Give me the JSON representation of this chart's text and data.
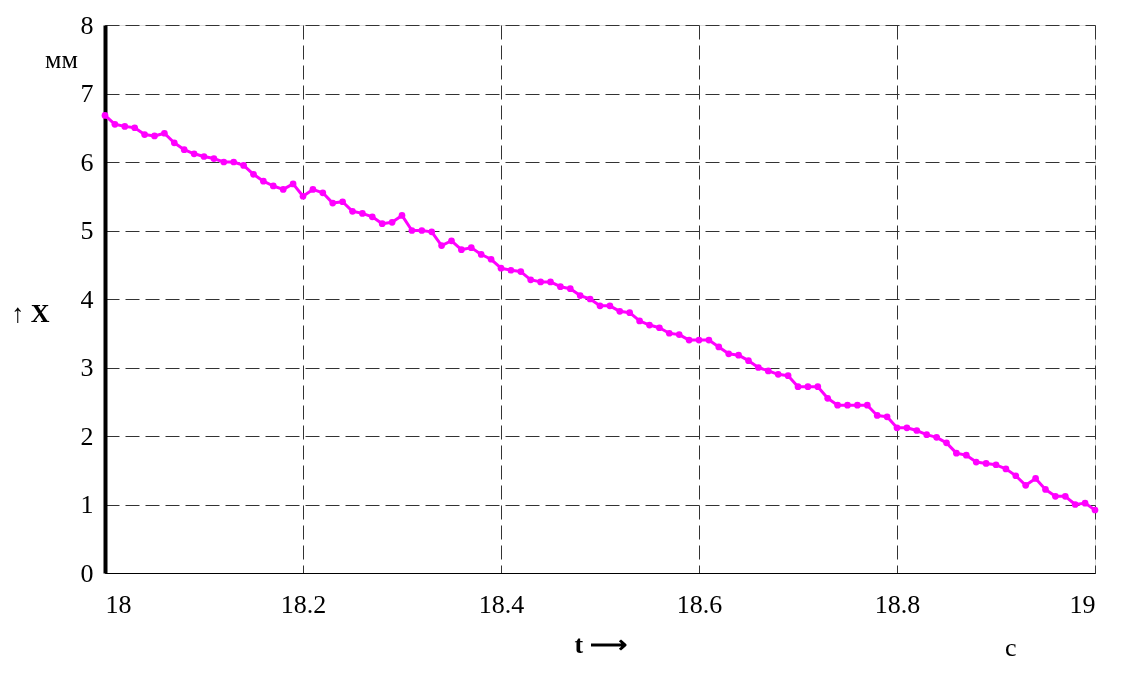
{
  "chart_data": {
    "type": "line",
    "xlabel": "t ⟶",
    "ylabel": "↑ X",
    "annotations": [
      "мм",
      "c"
    ],
    "x": [
      18.0,
      18.01,
      18.02,
      18.03,
      18.04,
      18.05,
      18.06,
      18.07,
      18.08,
      18.09,
      18.1,
      18.11,
      18.12,
      18.13,
      18.14,
      18.15,
      18.16,
      18.17,
      18.18,
      18.19,
      18.2,
      18.21,
      18.22,
      18.23,
      18.24,
      18.25,
      18.26,
      18.27,
      18.28,
      18.29,
      18.3,
      18.31,
      18.32,
      18.33,
      18.34,
      18.35,
      18.36,
      18.37,
      18.38,
      18.39,
      18.4,
      18.41,
      18.42,
      18.43,
      18.44,
      18.45,
      18.46,
      18.47,
      18.48,
      18.49,
      18.5,
      18.51,
      18.52,
      18.53,
      18.54,
      18.55,
      18.56,
      18.57,
      18.58,
      18.59,
      18.6,
      18.61,
      18.62,
      18.63,
      18.64,
      18.65,
      18.66,
      18.67,
      18.68,
      18.69,
      18.7,
      18.71,
      18.72,
      18.73,
      18.74,
      18.75,
      18.76,
      18.77,
      18.78,
      18.79,
      18.8,
      18.81,
      18.82,
      18.83,
      18.84,
      18.85,
      18.86,
      18.87,
      18.88,
      18.89,
      18.9,
      18.91,
      18.92,
      18.93,
      18.94,
      18.95,
      18.96,
      18.97,
      18.98,
      18.99,
      19.0
    ],
    "series": [
      {
        "color": "#ff00ff",
        "values": [
          6.68,
          6.55,
          6.52,
          6.5,
          6.4,
          6.38,
          6.42,
          6.28,
          6.18,
          6.12,
          6.08,
          6.05,
          6.0,
          6.0,
          5.95,
          5.82,
          5.72,
          5.65,
          5.6,
          5.68,
          5.5,
          5.6,
          5.55,
          5.4,
          5.42,
          5.28,
          5.25,
          5.2,
          5.1,
          5.12,
          5.22,
          5.0,
          5.0,
          4.98,
          4.78,
          4.85,
          4.72,
          4.75,
          4.65,
          4.58,
          4.45,
          4.42,
          4.4,
          4.28,
          4.25,
          4.25,
          4.18,
          4.15,
          4.05,
          4.0,
          3.9,
          3.9,
          3.82,
          3.8,
          3.68,
          3.62,
          3.58,
          3.5,
          3.48,
          3.4,
          3.4,
          3.4,
          3.3,
          3.2,
          3.18,
          3.1,
          3.0,
          2.95,
          2.9,
          2.88,
          2.72,
          2.72,
          2.72,
          2.55,
          2.45,
          2.45,
          2.45,
          2.45,
          2.3,
          2.28,
          2.12,
          2.12,
          2.08,
          2.02,
          1.98,
          1.9,
          1.75,
          1.72,
          1.62,
          1.6,
          1.58,
          1.52,
          1.42,
          1.28,
          1.38,
          1.22,
          1.12,
          1.12,
          1.0,
          1.02,
          0.92
        ]
      }
    ],
    "xlim": [
      18,
      19
    ],
    "xticks": [
      18,
      18.2,
      18.4,
      18.6,
      18.8,
      19
    ],
    "ylim": [
      0,
      8
    ],
    "yticks": [
      0,
      1,
      2,
      3,
      4,
      5,
      6,
      7,
      8
    ],
    "grid": true,
    "marker": "circle",
    "line_style": "solid",
    "legend": false
  }
}
